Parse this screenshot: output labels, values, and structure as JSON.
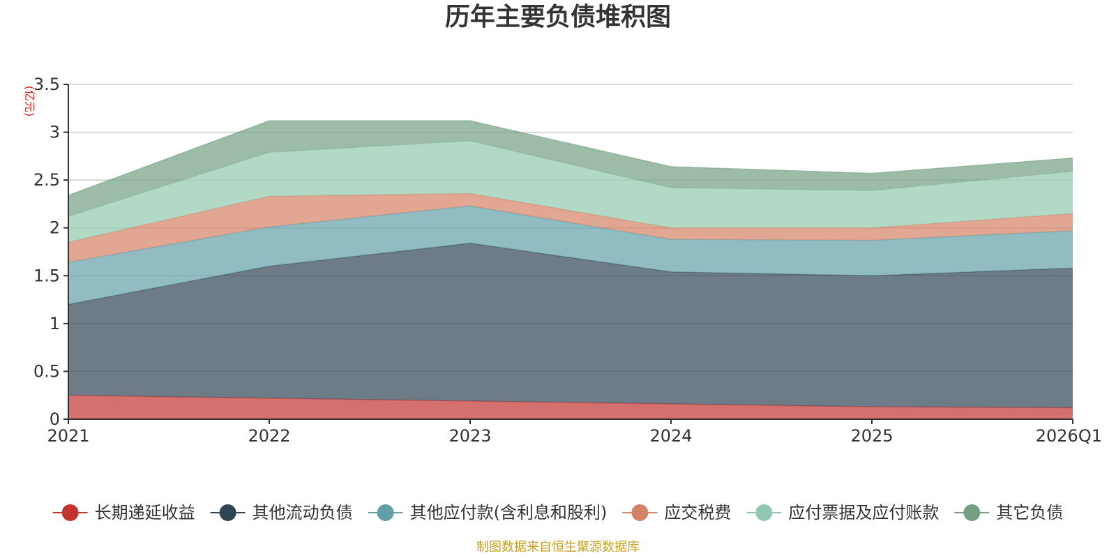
{
  "chart_data": {
    "type": "area",
    "stacked": true,
    "title": "历年主要负债堆积图",
    "unit_label": "(亿元)",
    "categories": [
      "2021",
      "2022",
      "2023",
      "2024",
      "2025",
      "2026Q1"
    ],
    "ylim": [
      0,
      3.5
    ],
    "yticks": [
      "0",
      "0.5",
      "1",
      "1.5",
      "2",
      "2.5",
      "3",
      "3.5"
    ],
    "grid": true,
    "legend_position": "bottom",
    "series": [
      {
        "name": "长期递延收益",
        "values": [
          0.25,
          0.22,
          0.19,
          0.16,
          0.13,
          0.12
        ],
        "color": "#c23531"
      },
      {
        "name": "其他流动负债",
        "values": [
          0.95,
          1.38,
          1.65,
          1.38,
          1.37,
          1.46
        ],
        "color": "#2f4554"
      },
      {
        "name": "其他应付款(含利息和股利)",
        "values": [
          0.44,
          0.41,
          0.39,
          0.34,
          0.37,
          0.39
        ],
        "color": "#61a0a8"
      },
      {
        "name": "应交税费",
        "values": [
          0.21,
          0.32,
          0.13,
          0.12,
          0.13,
          0.18
        ],
        "color": "#d48265"
      },
      {
        "name": "应付票据及应付账款",
        "values": [
          0.27,
          0.46,
          0.55,
          0.42,
          0.39,
          0.44
        ],
        "color": "#91c7ae"
      },
      {
        "name": "其它负债",
        "values": [
          0.22,
          0.33,
          0.21,
          0.22,
          0.18,
          0.14
        ],
        "color": "#749f83"
      }
    ],
    "source": "制图数据来自恒生聚源数据库"
  }
}
